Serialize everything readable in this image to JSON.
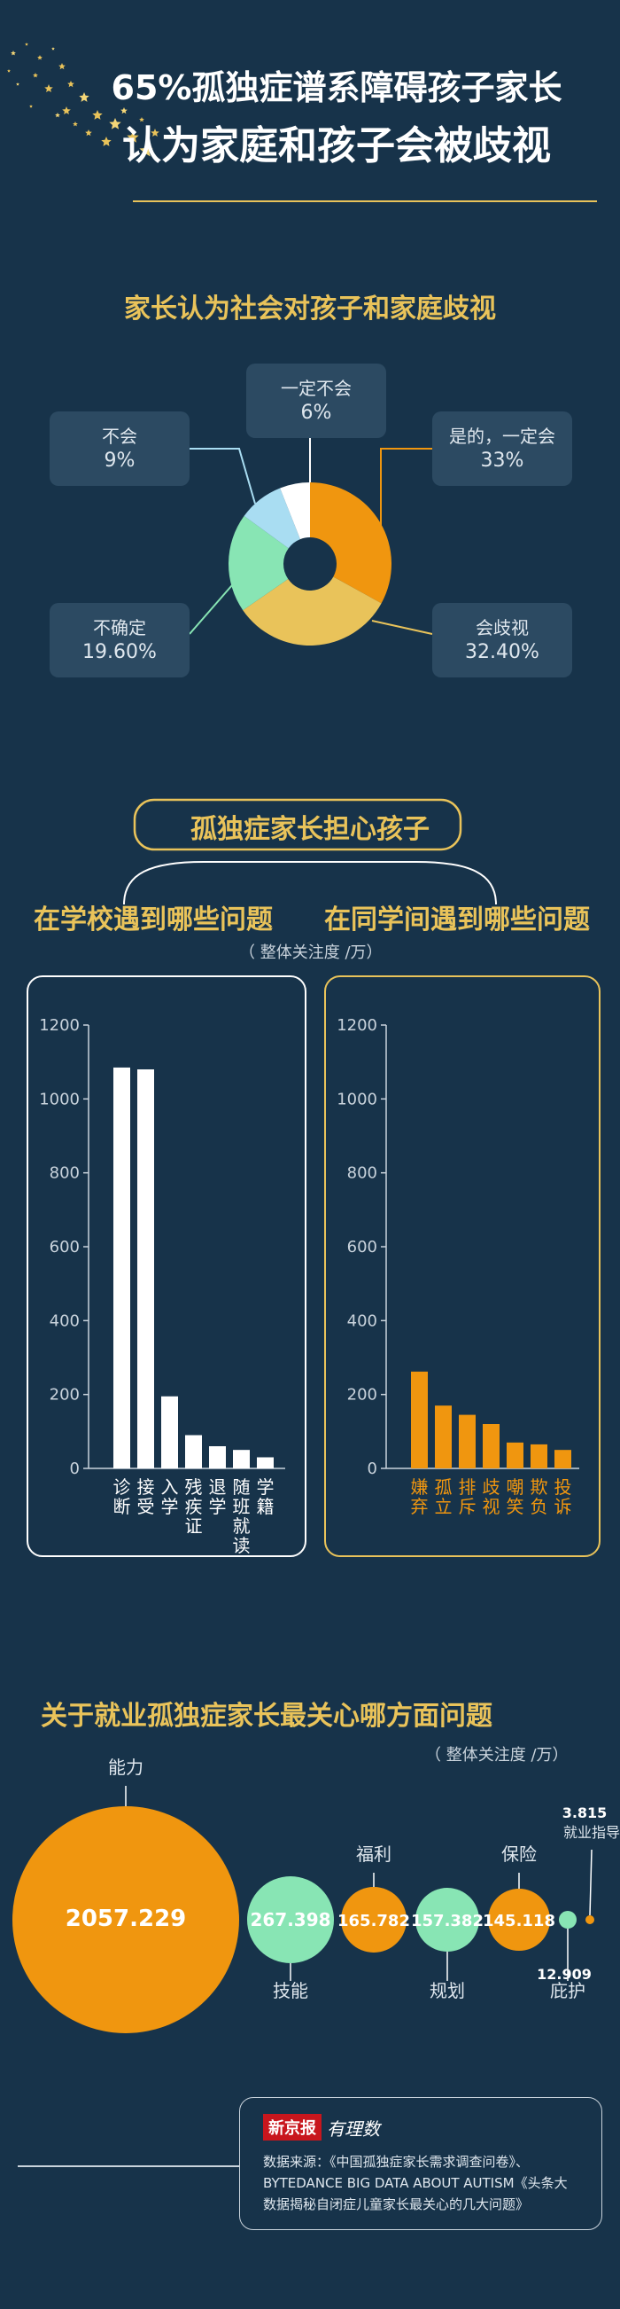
{
  "header": {
    "title_line1": "65%孤独症谱系障碍孩子家长",
    "title_line2": "认为家庭和孩子会被歧视"
  },
  "colors": {
    "background": "#17334a",
    "gold": "#e9c35a",
    "orange": "#f0960f",
    "mint": "#88e5b4",
    "light_blue": "#a9ddf2",
    "white": "#ffffff"
  },
  "section1": {
    "title": "家长认为社会对孩子和家庭歧视",
    "callouts": {
      "yes": {
        "label": "是的，一定会",
        "value": "33%"
      },
      "will": {
        "label": "会歧视",
        "value": "32.40%"
      },
      "unsure": {
        "label": "不确定",
        "value": "19.60%"
      },
      "no": {
        "label": "不会",
        "value": "9%"
      },
      "never": {
        "label": "一定不会",
        "value": "6%"
      }
    }
  },
  "section2": {
    "title": "孤独症家长担心孩子",
    "left_title": "在学校遇到哪些问题",
    "right_title": "在同学间遇到哪些问题",
    "unit": "（  整体关注度 /万）"
  },
  "section3": {
    "title": "关于就业孤独症家长最关心哪方面问题",
    "unit": "（  整体关注度 /万）"
  },
  "source": {
    "logo_text": "新京报",
    "logo_script": "有理数",
    "text_line1": "数据来源：《中国孤独症家长需求调查问卷》、",
    "text_line2": "BYTEDANCE BIG DATA ABOUT AUTISM《头条大",
    "text_line3": "数据揭秘自闭症儿童家长最关心的几大问题》"
  },
  "chart_data": [
    {
      "type": "pie",
      "title": "家长认为社会对孩子和家庭歧视",
      "labels": [
        "是的，一定会",
        "会歧视",
        "不确定",
        "不会",
        "一定不会"
      ],
      "values": [
        33,
        32.4,
        19.6,
        9,
        6
      ],
      "colors": [
        "#f0960f",
        "#e9c35a",
        "#88e5b4",
        "#a9ddf2",
        "#ffffff"
      ],
      "donut": true
    },
    {
      "type": "bar",
      "title": "在学校遇到哪些问题",
      "categories": [
        "诊断",
        "接受",
        "入学",
        "残疾证",
        "退学",
        "随班就读",
        "学籍"
      ],
      "values": [
        1085,
        1080,
        195,
        90,
        60,
        50,
        30
      ],
      "ylim": [
        0,
        1200
      ],
      "yticks": [
        0,
        200,
        400,
        600,
        800,
        1000,
        1200
      ],
      "color": "#ffffff"
    },
    {
      "type": "bar",
      "title": "在同学间遇到哪些问题",
      "categories": [
        "嫌弃",
        "孤立",
        "排斥",
        "歧视",
        "嘲笑",
        "欺负",
        "投诉"
      ],
      "values": [
        262,
        170,
        145,
        120,
        70,
        65,
        50
      ],
      "ylim": [
        0,
        1200
      ],
      "yticks": [
        0,
        200,
        400,
        600,
        800,
        1000,
        1200
      ],
      "color": "#f0960f"
    },
    {
      "type": "scatter",
      "title": "关于就业孤独症家长最关心哪方面问题",
      "categories": [
        "能力",
        "技能",
        "福利",
        "规划",
        "保险",
        "庇护",
        "就业指导"
      ],
      "values": [
        2057.229,
        267.398,
        165.782,
        157.382,
        145.118,
        12.909,
        3.815
      ],
      "value_labels": [
        "2057.229",
        "267.398",
        "165.782",
        "157.382",
        "145.118",
        "12.909",
        "3.815"
      ],
      "colors": [
        "#f0960f",
        "#88e5b4",
        "#f0960f",
        "#88e5b4",
        "#f0960f",
        "#88e5b4",
        "#f0960f"
      ]
    }
  ]
}
